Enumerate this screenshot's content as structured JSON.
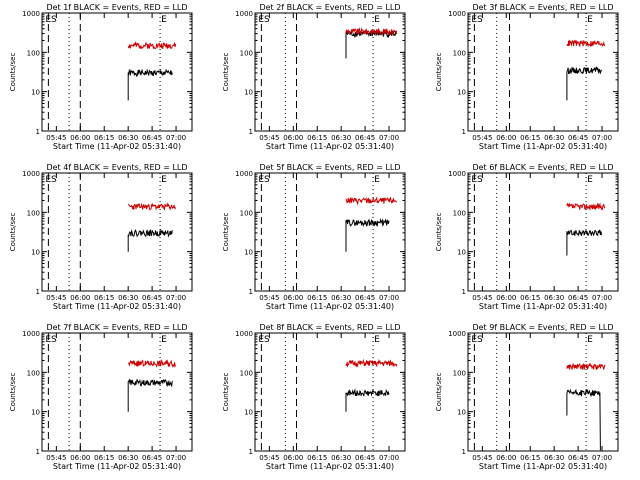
{
  "chart_data": [
    {
      "panel": "det-1f",
      "type": "line",
      "title": "Det 1f BLACK = Events, RED = LLD",
      "xlabel": "Start Time (11-Apr-02 05:31:40)",
      "ylabel": "Counts/sec",
      "xticks": [
        "05:45",
        "06:00",
        "06:15",
        "06:30",
        "06:45",
        "07:00"
      ],
      "yticks": [
        "1",
        "10",
        "100",
        "1000"
      ],
      "ylim": [
        1,
        1000
      ],
      "yscale": "log",
      "xlim": [
        "05:36",
        "07:10"
      ],
      "markers": [
        "ES",
        "E"
      ],
      "vlines": {
        "dashed": [
          "05:40",
          "06:00"
        ],
        "dotted": [
          "05:53",
          "06:50"
        ]
      },
      "series": [
        {
          "name": "BLACK = Events",
          "color": "#000000",
          "x_range": [
            "06:30",
            "06:58"
          ],
          "level": 30,
          "jump_from": 6
        },
        {
          "name": "RED = LLD",
          "color": "#cc0000",
          "x_range": [
            "06:30",
            "07:00"
          ],
          "level": 150
        }
      ]
    },
    {
      "panel": "det-2f",
      "type": "line",
      "title": "Det 2f BLACK = Events, RED = LLD",
      "xlabel": "Start Time (11-Apr-02 05:31:40)",
      "ylabel": "Counts/sec",
      "xticks": [
        "05:45",
        "06:00",
        "06:15",
        "06:30",
        "06:45",
        "07:00"
      ],
      "yticks": [
        "1",
        "10",
        "100",
        "1000"
      ],
      "ylim": [
        1,
        1000
      ],
      "yscale": "log",
      "xlim": [
        "05:36",
        "07:10"
      ],
      "markers": [
        "ES",
        "E"
      ],
      "vlines": {
        "dashed": [
          "05:40",
          "06:02"
        ],
        "dotted": [
          "05:55",
          "06:50"
        ]
      },
      "series": [
        {
          "name": "BLACK = Events",
          "color": "#000000",
          "x_range": [
            "06:33",
            "07:05"
          ],
          "level": 300,
          "jump_from": 70
        },
        {
          "name": "RED = LLD",
          "color": "#cc0000",
          "x_range": [
            "06:33",
            "07:05"
          ],
          "level": 340
        }
      ]
    },
    {
      "panel": "det-3f",
      "type": "line",
      "title": "Det 3f BLACK = Events, RED = LLD",
      "xlabel": "Start Time (11-Apr-02 05:31:40)",
      "ylabel": "Counts/sec",
      "xticks": [
        "05:45",
        "06:00",
        "06:15",
        "06:30",
        "06:45",
        "07:00"
      ],
      "yticks": [
        "1",
        "10",
        "100",
        "1000"
      ],
      "ylim": [
        1,
        1000
      ],
      "yscale": "log",
      "xlim": [
        "05:36",
        "07:10"
      ],
      "markers": [
        "ES",
        "E"
      ],
      "vlines": {
        "dashed": [
          "05:40",
          "06:02"
        ],
        "dotted": [
          "05:54",
          "06:50"
        ]
      },
      "series": [
        {
          "name": "BLACK = Events",
          "color": "#000000",
          "x_range": [
            "06:38",
            "07:00"
          ],
          "level": 35,
          "jump_from": 6
        },
        {
          "name": "RED = LLD",
          "color": "#cc0000",
          "x_range": [
            "06:38",
            "07:02"
          ],
          "level": 170
        }
      ]
    },
    {
      "panel": "det-4f",
      "type": "line",
      "title": "Det 4f BLACK = Events, RED = LLD",
      "xlabel": "Start Time (11-Apr-02 05:31:40)",
      "ylabel": "Counts/sec",
      "xticks": [
        "05:45",
        "06:00",
        "06:15",
        "06:30",
        "06:45",
        "07:00"
      ],
      "yticks": [
        "1",
        "10",
        "100",
        "1000"
      ],
      "ylim": [
        1,
        1000
      ],
      "yscale": "log",
      "xlim": [
        "05:36",
        "07:10"
      ],
      "markers": [
        "ES",
        "E"
      ],
      "vlines": {
        "dashed": [
          "05:40",
          "06:00"
        ],
        "dotted": [
          "05:53",
          "06:50"
        ]
      },
      "series": [
        {
          "name": "BLACK = Events",
          "color": "#000000",
          "x_range": [
            "06:30",
            "06:58"
          ],
          "level": 30,
          "jump_from": 10
        },
        {
          "name": "RED = LLD",
          "color": "#cc0000",
          "x_range": [
            "06:30",
            "07:00"
          ],
          "level": 140
        }
      ]
    },
    {
      "panel": "det-5f",
      "type": "line",
      "title": "Det 5f BLACK = Events, RED = LLD",
      "xlabel": "Start Time (11-Apr-02 05:31:40)",
      "ylabel": "Counts/sec",
      "xticks": [
        "05:45",
        "06:00",
        "06:15",
        "06:30",
        "06:45",
        "07:00"
      ],
      "yticks": [
        "1",
        "10",
        "100",
        "1000"
      ],
      "ylim": [
        1,
        1000
      ],
      "yscale": "log",
      "xlim": [
        "05:36",
        "07:10"
      ],
      "markers": [
        "ES",
        "E"
      ],
      "vlines": {
        "dashed": [
          "05:40",
          "06:02"
        ],
        "dotted": [
          "05:55",
          "06:50"
        ]
      },
      "series": [
        {
          "name": "BLACK = Events",
          "color": "#000000",
          "x_range": [
            "06:33",
            "07:00"
          ],
          "level": 55,
          "jump_from": 10
        },
        {
          "name": "RED = LLD",
          "color": "#cc0000",
          "x_range": [
            "06:33",
            "07:05"
          ],
          "level": 200
        }
      ]
    },
    {
      "panel": "det-6f",
      "type": "line",
      "title": "Det 6f BLACK = Events, RED = LLD",
      "xlabel": "Start Time (11-Apr-02 05:31:40)",
      "ylabel": "Counts/sec",
      "xticks": [
        "05:45",
        "06:00",
        "06:15",
        "06:30",
        "06:45",
        "07:00"
      ],
      "yticks": [
        "1",
        "10",
        "100",
        "1000"
      ],
      "ylim": [
        1,
        1000
      ],
      "yscale": "log",
      "xlim": [
        "05:36",
        "07:10"
      ],
      "markers": [
        "ES",
        "E"
      ],
      "vlines": {
        "dashed": [
          "05:40",
          "06:02"
        ],
        "dotted": [
          "05:54",
          "06:50"
        ]
      },
      "series": [
        {
          "name": "BLACK = Events",
          "color": "#000000",
          "x_range": [
            "06:38",
            "07:00"
          ],
          "level": 30,
          "jump_from": 8
        },
        {
          "name": "RED = LLD",
          "color": "#cc0000",
          "x_range": [
            "06:38",
            "07:02"
          ],
          "level": 140
        }
      ]
    },
    {
      "panel": "det-7f",
      "type": "line",
      "title": "Det 7f BLACK = Events, RED = LLD",
      "xlabel": "Start Time (11-Apr-02 05:31:40)",
      "ylabel": "Counts/sec",
      "xticks": [
        "05:45",
        "06:00",
        "06:15",
        "06:30",
        "06:45",
        "07:00"
      ],
      "yticks": [
        "1",
        "10",
        "100",
        "1000"
      ],
      "ylim": [
        1,
        1000
      ],
      "yscale": "log",
      "xlim": [
        "05:36",
        "07:10"
      ],
      "markers": [
        "ES",
        "E"
      ],
      "vlines": {
        "dashed": [
          "05:40",
          "06:00"
        ],
        "dotted": [
          "05:53",
          "06:50"
        ]
      },
      "series": [
        {
          "name": "BLACK = Events",
          "color": "#000000",
          "x_range": [
            "06:30",
            "06:58"
          ],
          "level": 55,
          "jump_from": 10
        },
        {
          "name": "RED = LLD",
          "color": "#cc0000",
          "x_range": [
            "06:30",
            "07:00"
          ],
          "level": 170
        }
      ]
    },
    {
      "panel": "det-8f",
      "type": "line",
      "title": "Det 8f BLACK = Events, RED = LLD",
      "xlabel": "Start Time (11-Apr-02 05:31:40)",
      "ylabel": "Counts/sec",
      "xticks": [
        "05:45",
        "06:00",
        "06:15",
        "06:30",
        "06:45",
        "07:00"
      ],
      "yticks": [
        "1",
        "10",
        "100",
        "1000"
      ],
      "ylim": [
        1,
        1000
      ],
      "yscale": "log",
      "xlim": [
        "05:36",
        "07:10"
      ],
      "markers": [
        "ES",
        "E"
      ],
      "vlines": {
        "dashed": [
          "05:40",
          "06:02"
        ],
        "dotted": [
          "05:55",
          "06:50"
        ]
      },
      "series": [
        {
          "name": "BLACK = Events",
          "color": "#000000",
          "x_range": [
            "06:33",
            "07:00"
          ],
          "level": 30,
          "jump_from": 10
        },
        {
          "name": "RED = LLD",
          "color": "#cc0000",
          "x_range": [
            "06:33",
            "07:05"
          ],
          "level": 170
        }
      ]
    },
    {
      "panel": "det-9f",
      "type": "line",
      "title": "Det 9f BLACK = Events, RED = LLD",
      "xlabel": "Start Time (11-Apr-02 05:31:40)",
      "ylabel": "Counts/sec",
      "xticks": [
        "05:45",
        "06:00",
        "06:15",
        "06:30",
        "06:45",
        "07:00"
      ],
      "yticks": [
        "1",
        "10",
        "100",
        "1000"
      ],
      "ylim": [
        1,
        1000
      ],
      "yscale": "log",
      "xlim": [
        "05:36",
        "07:10"
      ],
      "markers": [
        "ES",
        "E"
      ],
      "vlines": {
        "dashed": [
          "05:40",
          "06:02"
        ],
        "dotted": [
          "05:54",
          "06:50"
        ]
      },
      "series": [
        {
          "name": "BLACK = Events",
          "color": "#000000",
          "x_range": [
            "06:38",
            "06:59"
          ],
          "level": 30,
          "jump_from": 8,
          "drop_to": 1
        },
        {
          "name": "RED = LLD",
          "color": "#cc0000",
          "x_range": [
            "06:38",
            "07:02"
          ],
          "level": 140
        }
      ]
    }
  ]
}
